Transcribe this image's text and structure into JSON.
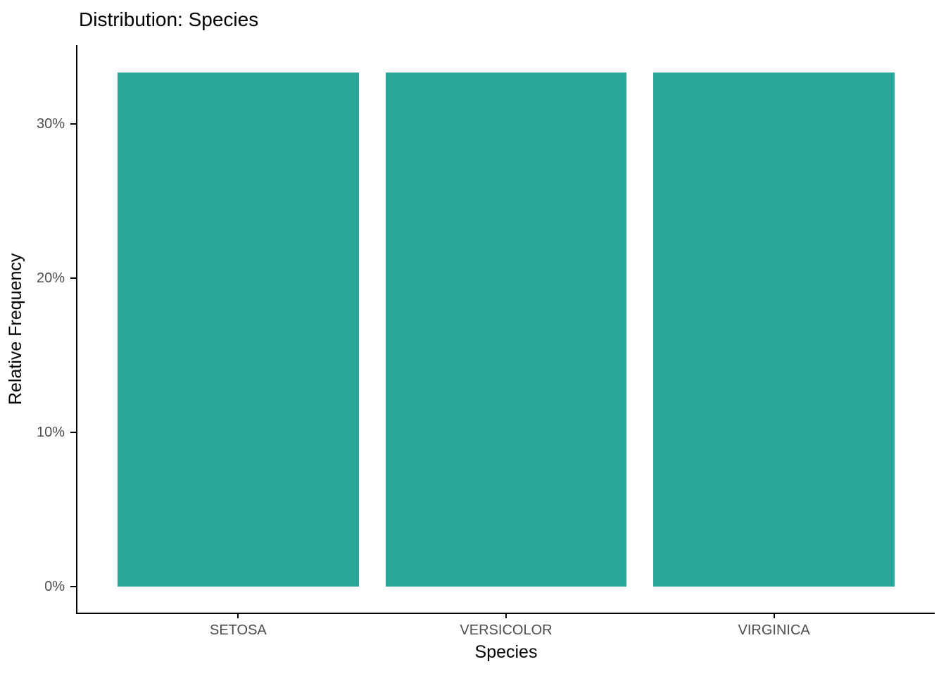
{
  "chart_data": {
    "type": "bar",
    "title": "Distribution: Species",
    "xlabel": "Species",
    "ylabel": "Relative Frequency",
    "categories": [
      "SETOSA",
      "VERSICOLOR",
      "VIRGINICA"
    ],
    "values": [
      33.33,
      33.33,
      33.33
    ],
    "value_unit": "%",
    "y_ticks": [
      0,
      10,
      20,
      30
    ],
    "y_tick_labels": [
      "0%",
      "10%",
      "20%",
      "30%"
    ],
    "ylim": [
      -1.7,
      35.1
    ],
    "grid": false,
    "legend": "none",
    "bar_color": "#2aa79a",
    "axis_color": "#000000",
    "tick_label_color": "#4d4d4d",
    "background": "#ffffff"
  }
}
